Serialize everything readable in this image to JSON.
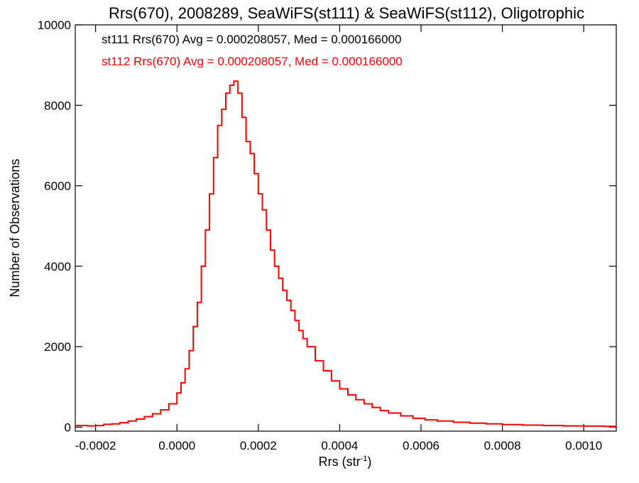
{
  "chart_data": {
    "type": "line",
    "title": "Rrs(670), 2008289, SeaWiFS(st111) & SeaWiFS(st112), Oligotrophic",
    "xlabel": "Rrs (str",
    "xlabel_superscript": "-1",
    "xlabel_suffix": ")",
    "ylabel": "Number of Observations",
    "xlim": [
      -0.00025,
      0.00108
    ],
    "ylim": [
      -100,
      10000
    ],
    "x_ticks": [
      -0.0002,
      0.0,
      0.0002,
      0.0004,
      0.0006,
      0.0008,
      0.001
    ],
    "x_tick_labels": [
      "-0.0002",
      "0.0000",
      "0.0002",
      "0.0004",
      "0.0006",
      "0.0008",
      "0.0010"
    ],
    "y_ticks": [
      0,
      2000,
      4000,
      6000,
      8000,
      10000
    ],
    "y_tick_labels": [
      "0",
      "2000",
      "4000",
      "6000",
      "8000",
      "10000"
    ],
    "grid": false,
    "legend_placement": "top-left",
    "annotations": [
      {
        "text": "st111 Rrs(670) Avg = 0.000208057, Med = 0.000166000",
        "color": "#000000"
      },
      {
        "text": "st112 Rrs(670) Avg = 0.000208057, Med = 0.000166000",
        "color": "#ff0000"
      }
    ],
    "series": [
      {
        "color": "#ff0000",
        "draw_style": "histogram-step",
        "points": [
          [
            -0.00025,
            40
          ],
          [
            -0.00022,
            30
          ],
          [
            -0.0002,
            40
          ],
          [
            -0.00018,
            70
          ],
          [
            -0.00016,
            80
          ],
          [
            -0.00014,
            110
          ],
          [
            -0.00012,
            150
          ],
          [
            -0.0001,
            200
          ],
          [
            -8e-05,
            260
          ],
          [
            -6e-05,
            330
          ],
          [
            -4e-05,
            430
          ],
          [
            -2e-05,
            580
          ],
          [
            0.0,
            850
          ],
          [
            1e-05,
            1100
          ],
          [
            2e-05,
            1450
          ],
          [
            3e-05,
            1900
          ],
          [
            4e-05,
            2500
          ],
          [
            5e-05,
            3100
          ],
          [
            6e-05,
            4000
          ],
          [
            7e-05,
            4900
          ],
          [
            8e-05,
            5800
          ],
          [
            9e-05,
            6700
          ],
          [
            0.0001,
            7500
          ],
          [
            0.00011,
            7900
          ],
          [
            0.00012,
            8300
          ],
          [
            0.00013,
            8500
          ],
          [
            0.00014,
            8600
          ],
          [
            0.00015,
            8300
          ],
          [
            0.00016,
            7700
          ],
          [
            0.00017,
            7100
          ],
          [
            0.00018,
            6800
          ],
          [
            0.00019,
            6300
          ],
          [
            0.0002,
            5800
          ],
          [
            0.00021,
            5400
          ],
          [
            0.00022,
            4900
          ],
          [
            0.00023,
            4400
          ],
          [
            0.00024,
            4000
          ],
          [
            0.00025,
            3700
          ],
          [
            0.00026,
            3400
          ],
          [
            0.00027,
            3150
          ],
          [
            0.00028,
            2900
          ],
          [
            0.00029,
            2650
          ],
          [
            0.0003,
            2400
          ],
          [
            0.00031,
            2200
          ],
          [
            0.00032,
            2000
          ],
          [
            0.00034,
            1650
          ],
          [
            0.00036,
            1400
          ],
          [
            0.00038,
            1150
          ],
          [
            0.0004,
            950
          ],
          [
            0.00042,
            800
          ],
          [
            0.00044,
            680
          ],
          [
            0.00046,
            580
          ],
          [
            0.00048,
            490
          ],
          [
            0.0005,
            410
          ],
          [
            0.00052,
            350
          ],
          [
            0.00055,
            280
          ],
          [
            0.00058,
            220
          ],
          [
            0.00061,
            180
          ],
          [
            0.00064,
            150
          ],
          [
            0.00068,
            120
          ],
          [
            0.00072,
            100
          ],
          [
            0.00076,
            80
          ],
          [
            0.0008,
            65
          ],
          [
            0.00085,
            50
          ],
          [
            0.0009,
            40
          ],
          [
            0.00095,
            30
          ],
          [
            0.001,
            25
          ],
          [
            0.00105,
            20
          ],
          [
            0.00108,
            20
          ]
        ]
      }
    ]
  }
}
